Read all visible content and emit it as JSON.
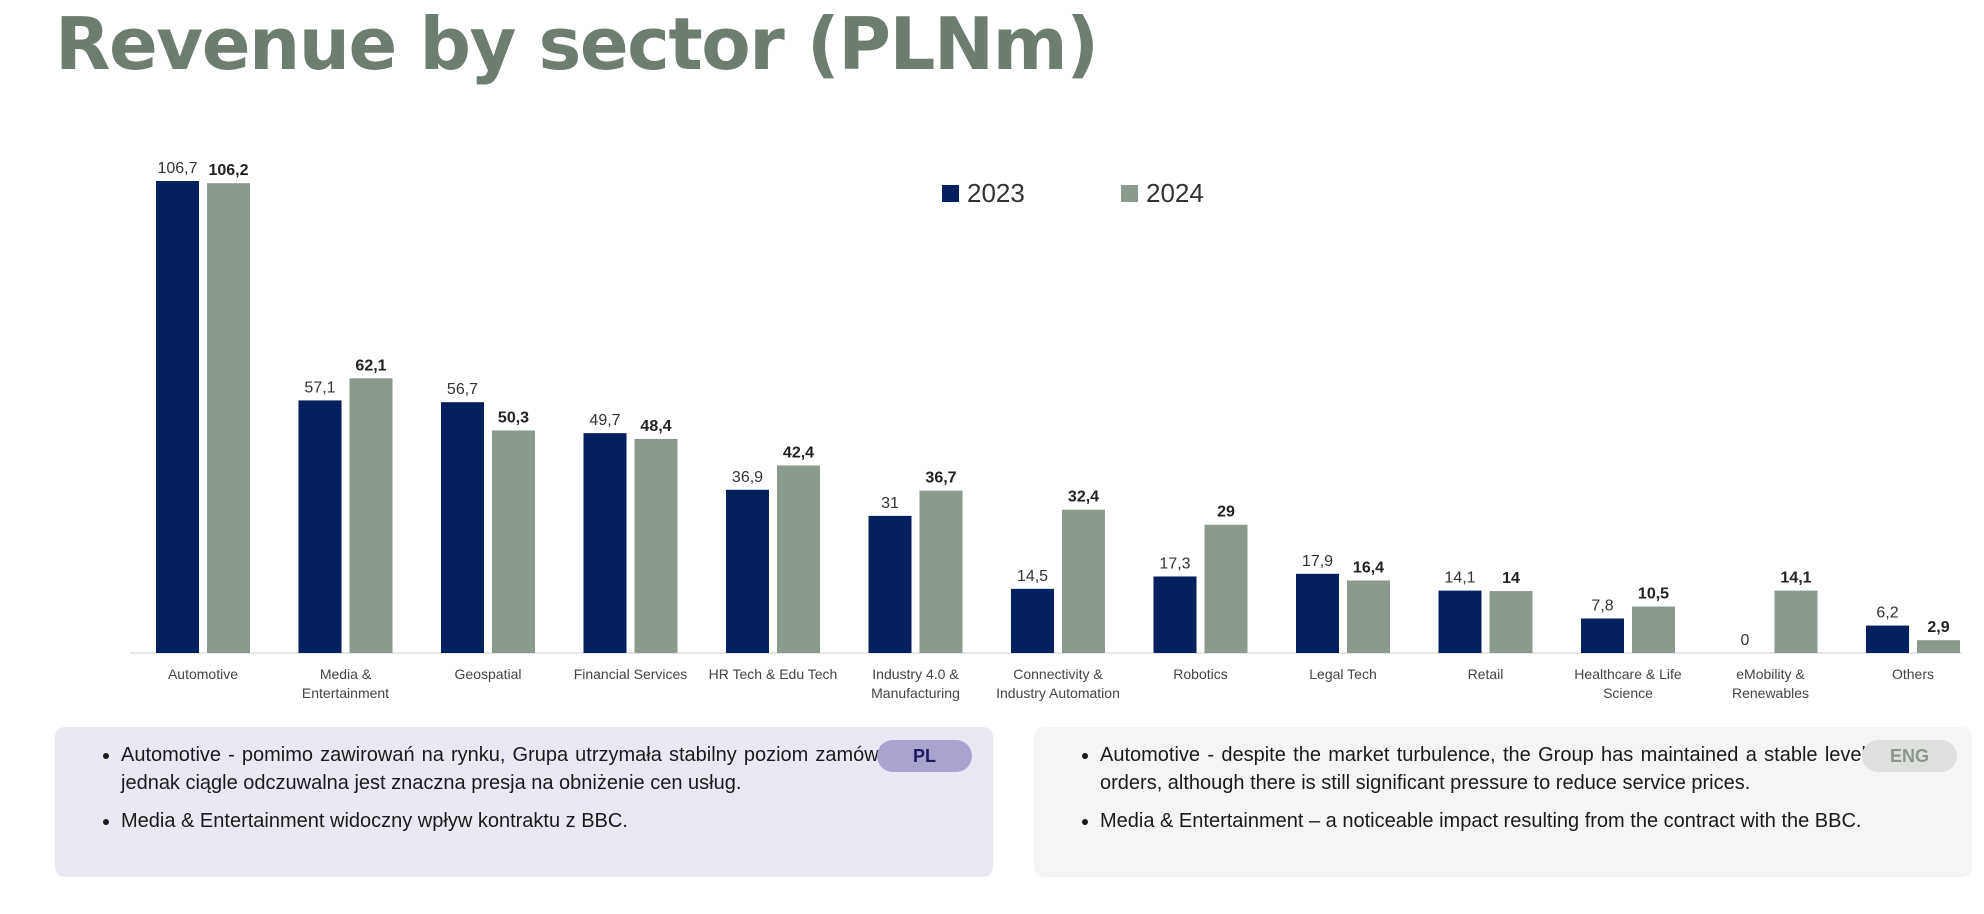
{
  "title": "Revenue by sector (PLNm)",
  "colors": {
    "y2023": "#04205e",
    "y2024": "#8a9a8c"
  },
  "chart_data": {
    "type": "bar",
    "categories": [
      "Automotive",
      "Media & Entertainment",
      "Geospatial",
      "Financial Services",
      "HR Tech & Edu Tech",
      "Industry 4.0 & Manufacturing",
      "Connectivity & Industry Automation",
      "Robotics",
      "Legal Tech",
      "Retail",
      "Healthcare & Life Science",
      "eMobility & Renewables",
      "Others"
    ],
    "category_lines": [
      [
        "Automotive"
      ],
      [
        "Media &",
        "Entertainment"
      ],
      [
        "Geospatial"
      ],
      [
        "Financial Services"
      ],
      [
        "HR Tech & Edu Tech"
      ],
      [
        "Industry 4.0 &",
        "Manufacturing"
      ],
      [
        "Connectivity &",
        "Industry Automation"
      ],
      [
        "Robotics"
      ],
      [
        "Legal Tech"
      ],
      [
        "Retail"
      ],
      [
        "Healthcare & Life",
        "Science"
      ],
      [
        "eMobility &",
        "Renewables"
      ],
      [
        "Others"
      ]
    ],
    "series": [
      {
        "name": "2023",
        "values": [
          106.7,
          57.1,
          56.7,
          49.7,
          36.9,
          31,
          14.5,
          17.3,
          17.9,
          14.1,
          7.8,
          0,
          6.2
        ],
        "labels": [
          "106,7",
          "57,1",
          "56,7",
          "49,7",
          "36,9",
          "31",
          "14,5",
          "17,3",
          "17,9",
          "14,1",
          "7,8",
          "0",
          "6,2"
        ]
      },
      {
        "name": "2024",
        "values": [
          106.2,
          62.1,
          50.3,
          48.4,
          42.4,
          36.7,
          32.4,
          29,
          16.4,
          14,
          10.5,
          14.1,
          2.9
        ],
        "labels": [
          "106,2",
          "62,1",
          "50,3",
          "48,4",
          "42,4",
          "36,7",
          "32,4",
          "29",
          "16,4",
          "14",
          "10,5",
          "14,1",
          "2,9"
        ]
      }
    ],
    "legend_position": "top-right",
    "grid": false
  },
  "notes": {
    "pl": {
      "badge": "PL",
      "items": [
        "Automotive - pomimo zawirowań na rynku, Grupa utrzymała stabilny poziom zamówień, jednak ciągle odczuwalna jest znaczna presja na obniżenie cen usług.",
        "Media & Entertainment widoczny wpływ kontraktu z BBC."
      ]
    },
    "eng": {
      "badge": "ENG",
      "items": [
        "Automotive - despite the market turbulence, the Group has maintained a stable level of orders, although there is still significant pressure to reduce service prices.",
        "Media & Entertainment – a noticeable impact resulting from the contract with the BBC."
      ]
    }
  }
}
